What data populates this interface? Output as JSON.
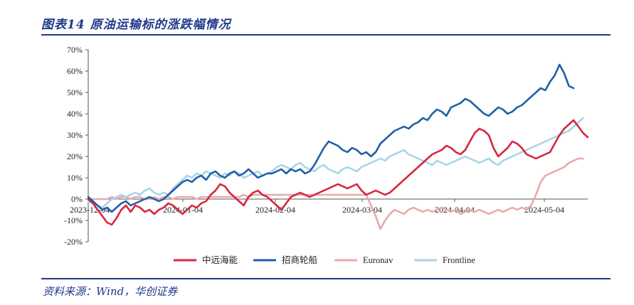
{
  "title": "图表14 原油运输标的涨跌幅情况",
  "source": "资料来源：Wind，华创证券",
  "chart_data": {
    "type": "line",
    "ylim": [
      -20,
      70
    ],
    "y_ticks": [
      -20,
      -10,
      0,
      10,
      20,
      30,
      40,
      50,
      60,
      70
    ],
    "y_tick_labels": [
      "-20%",
      "-10%",
      "0%",
      "10%",
      "20%",
      "30%",
      "40%",
      "50%",
      "60%",
      "70%"
    ],
    "x_tick_labels": [
      "2023-12-04",
      "2024-01-04",
      "2024-02-04",
      "2024-03-04",
      "2024-04-04",
      "2024-05-04"
    ],
    "legend_placement": "bottom",
    "series": [
      {
        "name": "中远海能",
        "color": "#d7263d",
        "values": [
          0,
          -2,
          -5,
          -8,
          -11,
          -12,
          -9,
          -5,
          -3,
          -6,
          -3,
          -4,
          -6,
          -5,
          -7,
          -5,
          -4,
          -2,
          -3,
          -5,
          -7,
          -5,
          -3,
          -4,
          -2,
          -1,
          2,
          4,
          7,
          6,
          3,
          1,
          -1,
          -3,
          1,
          3,
          4,
          2,
          1,
          -1,
          -3,
          -5,
          -2,
          1,
          2,
          3,
          2,
          1,
          2,
          3,
          4,
          5,
          6,
          7,
          6,
          5,
          6,
          7,
          4,
          2,
          3,
          4,
          3,
          2,
          3,
          5,
          7,
          9,
          11,
          13,
          15,
          17,
          19,
          21,
          22,
          23,
          25,
          24,
          22,
          21,
          23,
          27,
          31,
          33,
          32,
          30,
          24,
          20,
          22,
          24,
          27,
          26,
          24,
          21,
          20,
          19,
          20,
          21,
          22,
          26,
          30,
          33,
          35,
          37,
          34,
          31,
          29
        ]
      },
      {
        "name": "招商轮船",
        "color": "#1f5fa8",
        "values": [
          1,
          -1,
          -3,
          -5,
          -4,
          -6,
          -4,
          -2,
          -1,
          -3,
          -2,
          -1,
          0,
          1,
          0,
          -1,
          0,
          2,
          4,
          6,
          8,
          9,
          8,
          10,
          11,
          9,
          12,
          13,
          11,
          10,
          12,
          13,
          11,
          12,
          14,
          12,
          10,
          11,
          12,
          12,
          13,
          14,
          12,
          14,
          13,
          14,
          12,
          13,
          16,
          20,
          24,
          27,
          26,
          25,
          23,
          22,
          24,
          23,
          21,
          22,
          20,
          22,
          26,
          28,
          30,
          32,
          33,
          34,
          33,
          35,
          36,
          38,
          37,
          40,
          42,
          41,
          39,
          43,
          44,
          45,
          47,
          46,
          44,
          42,
          40,
          39,
          41,
          43,
          42,
          40,
          41,
          43,
          44,
          46,
          48,
          50,
          52,
          51,
          55,
          58,
          63,
          59,
          53,
          52
        ]
      },
      {
        "name": "Euronav",
        "color": "#e8a9ac",
        "values": [
          0,
          0,
          0,
          0,
          0,
          1,
          0,
          1,
          1,
          0,
          1,
          1,
          0,
          0,
          1,
          0,
          1,
          1,
          0,
          1,
          1,
          1,
          1,
          0,
          1,
          1,
          1,
          1,
          1,
          1,
          1,
          1,
          1,
          2,
          1,
          2,
          2,
          2,
          2,
          2,
          2,
          2,
          2,
          2,
          2,
          2,
          2,
          2,
          2,
          2,
          2,
          2,
          2,
          2,
          2,
          2,
          2,
          2,
          2,
          2,
          -3,
          -8,
          -14,
          -10,
          -7,
          -5,
          -6,
          -7,
          -5,
          -4,
          -5,
          -6,
          -5,
          -6,
          -5,
          -4,
          -5,
          -6,
          -5,
          -7,
          -6,
          -5,
          -6,
          -5,
          -6,
          -7,
          -6,
          -5,
          -6,
          -5,
          -4,
          -5,
          -4,
          -5,
          -3,
          2,
          8,
          11,
          12,
          13,
          14,
          15,
          17,
          18,
          19,
          19
        ]
      },
      {
        "name": "Frontline",
        "color": "#a8d4e6",
        "values": [
          -1,
          -2,
          -3,
          -4,
          -2,
          0,
          1,
          2,
          1,
          2,
          3,
          2,
          4,
          5,
          3,
          2,
          3,
          2,
          5,
          7,
          9,
          11,
          10,
          12,
          11,
          13,
          12,
          11,
          10,
          12,
          11,
          13,
          12,
          10,
          11,
          12,
          13,
          11,
          12,
          13,
          15,
          16,
          15,
          14,
          16,
          17,
          15,
          14,
          13,
          15,
          16,
          14,
          13,
          12,
          14,
          15,
          14,
          13,
          15,
          16,
          17,
          18,
          19,
          18,
          20,
          21,
          22,
          23,
          21,
          20,
          19,
          18,
          17,
          16,
          18,
          17,
          16,
          17,
          18,
          19,
          20,
          19,
          18,
          17,
          18,
          19,
          17,
          16,
          18,
          19,
          20,
          21,
          22,
          23,
          24,
          25,
          26,
          27,
          28,
          29,
          30,
          31,
          32,
          34,
          36,
          38
        ]
      }
    ]
  }
}
